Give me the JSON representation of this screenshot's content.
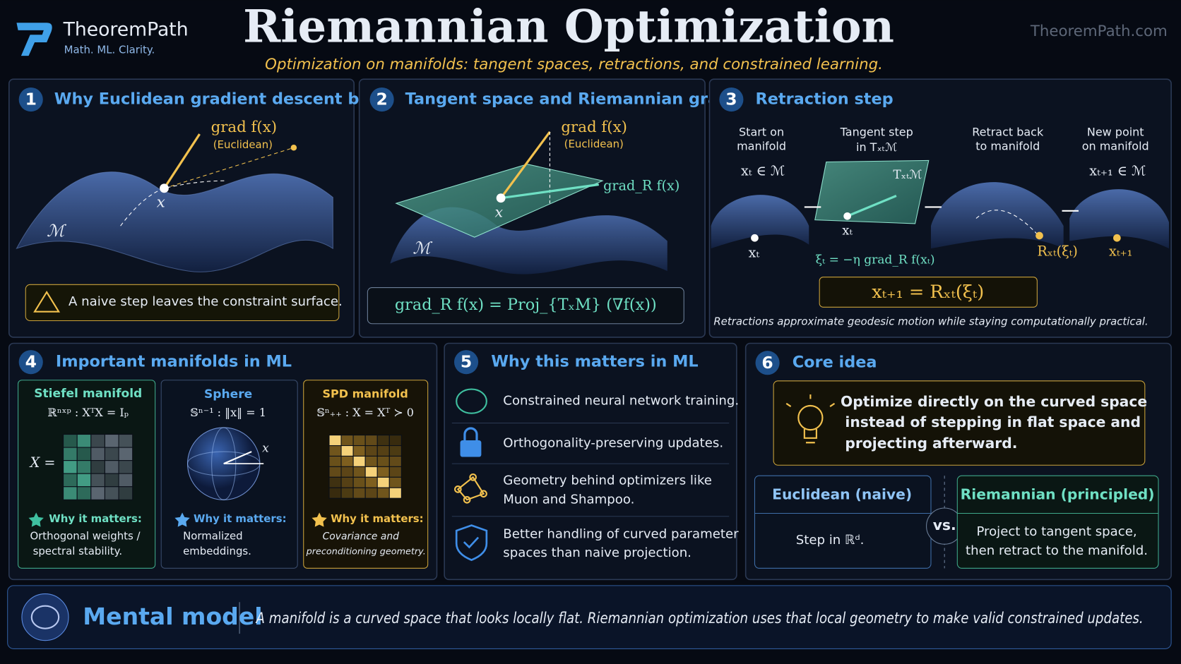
{
  "header": {
    "brand": "TheoremPath",
    "tagline": "Math.  ML.  Clarity.",
    "title": "Riemannian Optimization",
    "subtitle": "Optimization on manifolds: tangent spaces, retractions, and constrained learning.",
    "site": "TheoremPath.com"
  },
  "panels": [
    {
      "number": "1",
      "title": "Why Euclidean gradient descent breaks",
      "grad": "grad f(x)",
      "grad_note": "(Euclidean)",
      "point": "x",
      "manifold": "ℳ",
      "warning": "A naive step leaves the constraint surface."
    },
    {
      "number": "2",
      "title": "Tangent space and Riemannian gradient",
      "grad": "grad f(x)",
      "grad_note": "(Euclidean)",
      "riem_grad": "grad_R f(x)",
      "point": "x",
      "manifold": "ℳ",
      "formula": "grad_R f(x)  =  Proj_{TₓM} (∇f(x))"
    },
    {
      "number": "3",
      "title": "Retraction step",
      "steps": [
        {
          "label": [
            "Start on",
            "manifold"
          ],
          "math": "xₜ ∈ ℳ"
        },
        {
          "label": [
            "Tangent step",
            "in Tₓₜℳ"
          ]
        },
        {
          "label": [
            "Retract back",
            "to manifold"
          ]
        },
        {
          "label": [
            "New point",
            "on manifold"
          ],
          "math": "xₜ₊₁ ∈ ℳ"
        }
      ],
      "point_start": "xₜ",
      "tangent_label": "Tₓₜℳ",
      "point_tangent": "xₜ",
      "step_formula": "ξₜ = −η grad_R f(xₜ)",
      "retract_label": "Rₓₜ(ξₜ)",
      "point_new": "xₜ₊₁",
      "formula": "xₜ₊₁  =  Rₓₜ(ξₜ)",
      "caption": "Retractions approximate geodesic motion while staying computationally practical."
    },
    {
      "number": "4",
      "title": "Important manifolds in ML",
      "cards": [
        {
          "name": "Stiefel manifold",
          "formula": "ℝⁿˣᵖ : XᵀX = Iₚ",
          "symbol": "X =",
          "why": "Why it matters:",
          "desc": [
            "Orthogonal weights /",
            "spectral stability."
          ]
        },
        {
          "name": "Sphere",
          "formula": "𝕊ⁿ⁻¹ : ‖x‖ = 1",
          "symbol": "x",
          "why": "Why it matters:",
          "desc": [
            "Normalized",
            "embeddings."
          ]
        },
        {
          "name": "SPD manifold",
          "formula": "𝕊ⁿ₊₊ : X = Xᵀ ≻ 0",
          "why": "Why it matters:",
          "desc": [
            "Covariance and",
            "preconditioning geometry."
          ]
        }
      ]
    },
    {
      "number": "5",
      "title": "Why this matters in ML",
      "items": [
        [
          "Constrained neural network training."
        ],
        [
          "Orthogonality-preserving updates."
        ],
        [
          "Geometry behind optimizers like",
          "Muon and Shampoo."
        ],
        [
          "Better handling of curved parameter",
          "spaces than naive projection."
        ]
      ]
    },
    {
      "number": "6",
      "title": "Core idea",
      "idea": [
        "Optimize directly on the curved space",
        "instead of stepping in flat space and",
        "projecting afterward."
      ],
      "left": {
        "title": "Euclidean (naive)",
        "body": "Step in ℝᵈ."
      },
      "vs": "vs.",
      "right": {
        "title": "Riemannian (principled)",
        "body": [
          "Project to tangent space,",
          "then retract to the manifold."
        ]
      }
    }
  ],
  "footer": {
    "label": "Mental model",
    "text": "A manifold is a curved space that looks locally flat. Riemannian optimization uses that local geometry to make valid constrained updates."
  }
}
